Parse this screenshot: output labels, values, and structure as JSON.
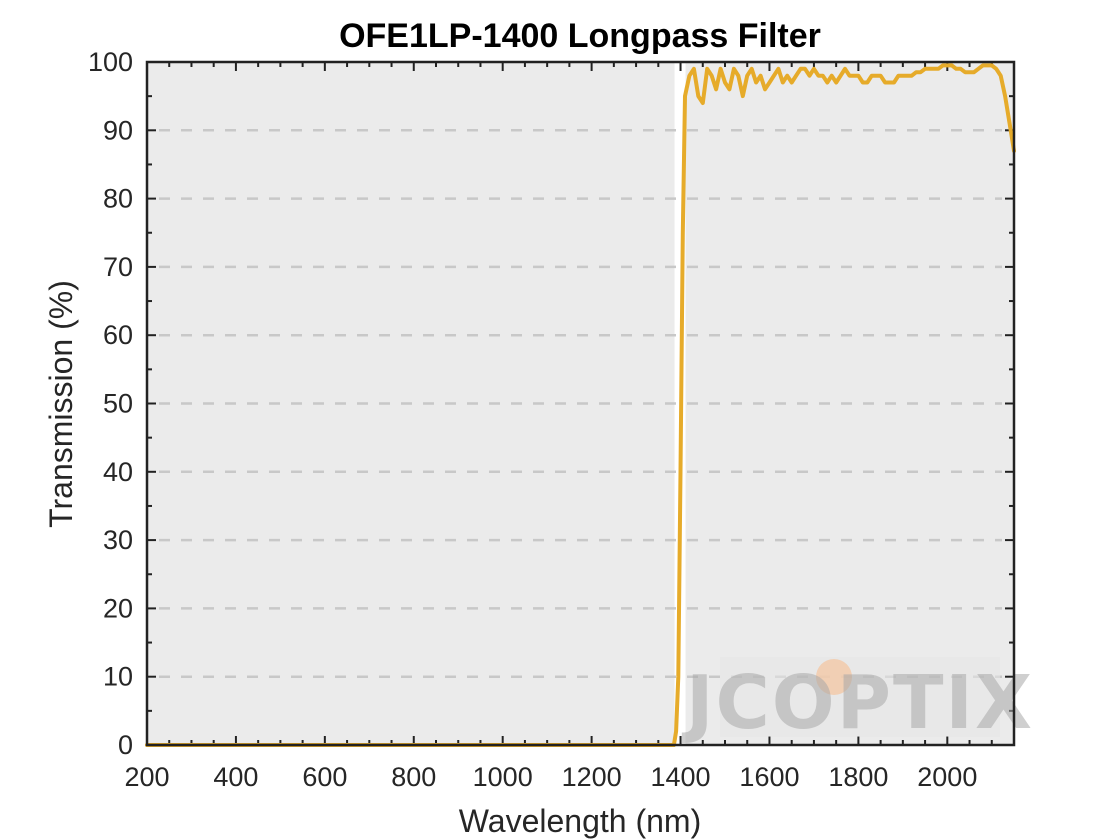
{
  "chart_data": {
    "type": "line",
    "title": "OFE1LP-1400 Longpass Filter",
    "xlabel": "Wavelength (nm)",
    "ylabel": "Transmission (%)",
    "xlim": [
      200,
      2150
    ],
    "ylim": [
      0,
      100
    ],
    "x_ticks": [
      200,
      400,
      600,
      800,
      1000,
      1200,
      1400,
      1600,
      1800,
      2000
    ],
    "y_ticks": [
      0,
      10,
      20,
      30,
      40,
      50,
      60,
      70,
      80,
      90,
      100
    ],
    "grid": "horizontal dashed",
    "legend": "none",
    "shaded_region": {
      "x_from": 200,
      "x_to": 1400,
      "label": ""
    },
    "series": [
      {
        "color": "#E6AB2A",
        "x": [
          200,
          400,
          600,
          800,
          1000,
          1200,
          1380,
          1385,
          1390,
          1395,
          1400,
          1405,
          1410,
          1420,
          1430,
          1440,
          1450,
          1460,
          1470,
          1480,
          1490,
          1500,
          1510,
          1520,
          1530,
          1540,
          1550,
          1560,
          1570,
          1580,
          1590,
          1600,
          1610,
          1620,
          1630,
          1640,
          1650,
          1660,
          1670,
          1680,
          1690,
          1700,
          1710,
          1720,
          1730,
          1740,
          1750,
          1760,
          1770,
          1780,
          1790,
          1800,
          1810,
          1820,
          1830,
          1840,
          1850,
          1860,
          1870,
          1880,
          1890,
          1900,
          1910,
          1920,
          1930,
          1940,
          1950,
          1960,
          1970,
          1980,
          1990,
          2000,
          2010,
          2020,
          2030,
          2040,
          2050,
          2060,
          2070,
          2080,
          2090,
          2100,
          2110,
          2120,
          2130,
          2140,
          2150
        ],
        "y": [
          0,
          0,
          0,
          0,
          0,
          0,
          0,
          0,
          2,
          10,
          40,
          75,
          95,
          98,
          99,
          95,
          94,
          99,
          98,
          96,
          99,
          97,
          96,
          99,
          98,
          95,
          98,
          99,
          97,
          98,
          96,
          97,
          98,
          99,
          97,
          98,
          97,
          98,
          99,
          99,
          98,
          99,
          98,
          98,
          97,
          98,
          97,
          98,
          99,
          98,
          98,
          98,
          97,
          97,
          98,
          98,
          98,
          97,
          97,
          97,
          98,
          98,
          98,
          98,
          98.5,
          98.5,
          99,
          99,
          99,
          99,
          99.5,
          99.5,
          99.5,
          99,
          99,
          98.5,
          98.5,
          98.5,
          99,
          99.5,
          99.5,
          99.5,
          99,
          98,
          95,
          91,
          87
        ]
      }
    ]
  },
  "watermark": {
    "text": "JCOPTIX"
  }
}
